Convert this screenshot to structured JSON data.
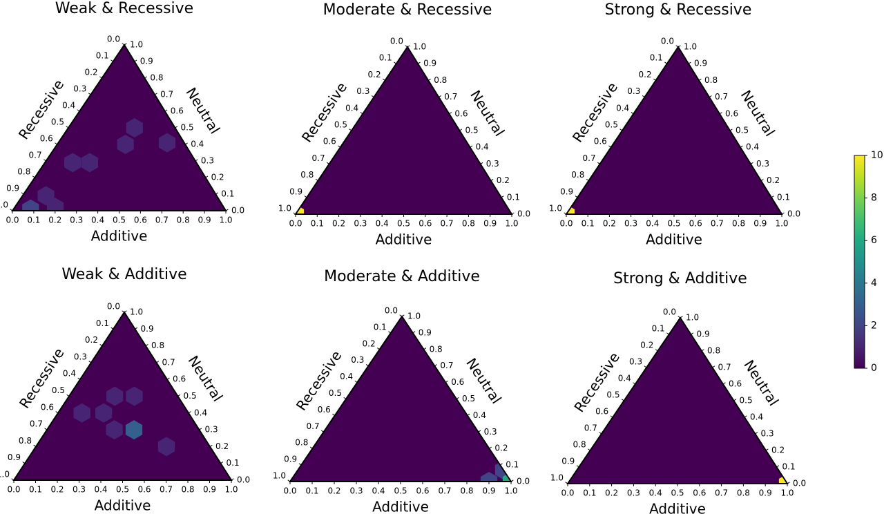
{
  "chart_data": [
    {
      "type": "ternary-hexbin",
      "title": "Weak & Recessive",
      "bottom_label": "Additive",
      "left_label": "Recessive",
      "right_label": "Neutral",
      "ticks": [
        {
          "value": 0,
          "label": "0.0"
        },
        0.1,
        0.2,
        0.3,
        0.4,
        0.5,
        0.6,
        0.7,
        0.8,
        0.9,
        {
          "value": 1,
          "label": "1.0"
        }
      ],
      "hexes": {
        "additive": [
          0.31,
          0.32,
          0.51,
          0.13,
          0.21,
          0.11,
          0.08,
          0.19
        ],
        "neutral": [
          0.5,
          0.4,
          0.41,
          0.29,
          0.29,
          0.09,
          0.01,
          0.02
        ],
        "counts": [
          1,
          1,
          1,
          1,
          1,
          1,
          2,
          1
        ]
      }
    },
    {
      "type": "ternary-hexbin",
      "title": "Moderate & Recessive",
      "bottom_label": "Additive",
      "left_label": "Recessive",
      "right_label": "Neutral",
      "ticks": [
        {
          "value": 0,
          "label": "0.0"
        },
        0.1,
        0.2,
        0.3,
        0.4,
        0.5,
        0.6,
        0.7,
        0.8,
        0.9,
        {
          "value": 1,
          "label": "1.0"
        }
      ],
      "hexes": {
        "additive": [
          0
        ],
        "neutral": [
          0
        ],
        "counts": [
          10
        ]
      }
    },
    {
      "type": "ternary-hexbin",
      "title": "Strong & Recessive",
      "bottom_label": "Additive",
      "left_label": "Recessive",
      "right_label": "Neutral",
      "ticks": [
        {
          "value": 0,
          "label": "0.0"
        },
        0.1,
        0.2,
        0.3,
        0.4,
        0.5,
        0.6,
        0.7,
        0.8,
        0.9,
        {
          "value": 1,
          "label": "1.0"
        }
      ],
      "hexes": {
        "additive": [
          0
        ],
        "neutral": [
          0
        ],
        "counts": [
          10
        ]
      }
    },
    {
      "type": "ternary-hexbin",
      "title": "Weak & Additive",
      "bottom_label": "Additive",
      "left_label": "Recessive",
      "right_label": "Neutral",
      "ticks": [
        {
          "value": 0,
          "label": "0.0"
        },
        0.1,
        0.2,
        0.3,
        0.4,
        0.5,
        0.6,
        0.7,
        0.8,
        0.9,
        {
          "value": 1,
          "label": "1.0"
        }
      ],
      "hexes": {
        "additive": [
          0.21,
          0.3,
          0.11,
          0.21,
          0.31,
          0.4,
          0.6
        ],
        "neutral": [
          0.5,
          0.5,
          0.4,
          0.4,
          0.3,
          0.3,
          0.2
        ],
        "counts": [
          1,
          1,
          1,
          1,
          1,
          3,
          1
        ]
      }
    },
    {
      "type": "ternary-hexbin",
      "title": "Moderate & Additive",
      "bottom_label": "Additive",
      "left_label": "Recessive",
      "right_label": "Neutral",
      "ticks": [
        {
          "value": 0,
          "label": "0.0"
        },
        0.1,
        0.2,
        0.3,
        0.4,
        0.5,
        0.6,
        0.7,
        0.8,
        0.9,
        {
          "value": 1,
          "label": "1.0"
        }
      ],
      "hexes": {
        "additive": [
          0.93,
          0.9,
          1
        ],
        "neutral": [
          0.07,
          0,
          0
        ],
        "counts": [
          2,
          2,
          6
        ]
      }
    },
    {
      "type": "ternary-hexbin",
      "title": "Strong & Additive",
      "bottom_label": "Additive",
      "left_label": "Recessive",
      "right_label": "Neutral",
      "ticks": [
        {
          "value": 0,
          "label": "0.0"
        },
        0.1,
        0.2,
        0.3,
        0.4,
        0.5,
        0.6,
        0.7,
        0.8,
        0.9,
        {
          "value": 1,
          "label": "1.0"
        }
      ],
      "hexes": {
        "additive": [
          1
        ],
        "neutral": [
          0
        ],
        "counts": [
          10
        ]
      }
    },
    {
      "type": "colorbar",
      "colormap": "viridis",
      "ylim": [
        0,
        10
      ],
      "yticks": [
        0,
        2,
        4,
        6,
        8,
        10
      ]
    }
  ]
}
